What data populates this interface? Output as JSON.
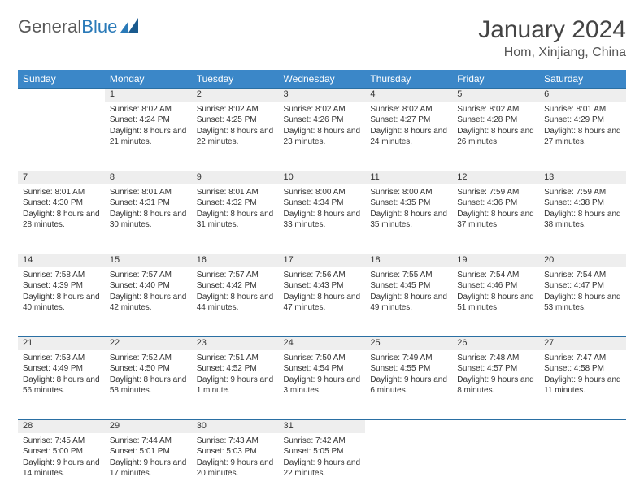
{
  "logo": {
    "text1": "General",
    "text2": "Blue"
  },
  "title": "January 2024",
  "location": "Hom, Xinjiang, China",
  "colors": {
    "header_bg": "#3b87c8",
    "header_text": "#ffffff",
    "daynum_bg": "#eeeeee",
    "border": "#2a6fa3",
    "logo_blue": "#2a7ab8"
  },
  "weekdays": [
    "Sunday",
    "Monday",
    "Tuesday",
    "Wednesday",
    "Thursday",
    "Friday",
    "Saturday"
  ],
  "weeks": [
    [
      null,
      {
        "n": "1",
        "sr": "8:02 AM",
        "ss": "4:24 PM",
        "dl": "8 hours and 21 minutes."
      },
      {
        "n": "2",
        "sr": "8:02 AM",
        "ss": "4:25 PM",
        "dl": "8 hours and 22 minutes."
      },
      {
        "n": "3",
        "sr": "8:02 AM",
        "ss": "4:26 PM",
        "dl": "8 hours and 23 minutes."
      },
      {
        "n": "4",
        "sr": "8:02 AM",
        "ss": "4:27 PM",
        "dl": "8 hours and 24 minutes."
      },
      {
        "n": "5",
        "sr": "8:02 AM",
        "ss": "4:28 PM",
        "dl": "8 hours and 26 minutes."
      },
      {
        "n": "6",
        "sr": "8:01 AM",
        "ss": "4:29 PM",
        "dl": "8 hours and 27 minutes."
      }
    ],
    [
      {
        "n": "7",
        "sr": "8:01 AM",
        "ss": "4:30 PM",
        "dl": "8 hours and 28 minutes."
      },
      {
        "n": "8",
        "sr": "8:01 AM",
        "ss": "4:31 PM",
        "dl": "8 hours and 30 minutes."
      },
      {
        "n": "9",
        "sr": "8:01 AM",
        "ss": "4:32 PM",
        "dl": "8 hours and 31 minutes."
      },
      {
        "n": "10",
        "sr": "8:00 AM",
        "ss": "4:34 PM",
        "dl": "8 hours and 33 minutes."
      },
      {
        "n": "11",
        "sr": "8:00 AM",
        "ss": "4:35 PM",
        "dl": "8 hours and 35 minutes."
      },
      {
        "n": "12",
        "sr": "7:59 AM",
        "ss": "4:36 PM",
        "dl": "8 hours and 37 minutes."
      },
      {
        "n": "13",
        "sr": "7:59 AM",
        "ss": "4:38 PM",
        "dl": "8 hours and 38 minutes."
      }
    ],
    [
      {
        "n": "14",
        "sr": "7:58 AM",
        "ss": "4:39 PM",
        "dl": "8 hours and 40 minutes."
      },
      {
        "n": "15",
        "sr": "7:57 AM",
        "ss": "4:40 PM",
        "dl": "8 hours and 42 minutes."
      },
      {
        "n": "16",
        "sr": "7:57 AM",
        "ss": "4:42 PM",
        "dl": "8 hours and 44 minutes."
      },
      {
        "n": "17",
        "sr": "7:56 AM",
        "ss": "4:43 PM",
        "dl": "8 hours and 47 minutes."
      },
      {
        "n": "18",
        "sr": "7:55 AM",
        "ss": "4:45 PM",
        "dl": "8 hours and 49 minutes."
      },
      {
        "n": "19",
        "sr": "7:54 AM",
        "ss": "4:46 PM",
        "dl": "8 hours and 51 minutes."
      },
      {
        "n": "20",
        "sr": "7:54 AM",
        "ss": "4:47 PM",
        "dl": "8 hours and 53 minutes."
      }
    ],
    [
      {
        "n": "21",
        "sr": "7:53 AM",
        "ss": "4:49 PM",
        "dl": "8 hours and 56 minutes."
      },
      {
        "n": "22",
        "sr": "7:52 AM",
        "ss": "4:50 PM",
        "dl": "8 hours and 58 minutes."
      },
      {
        "n": "23",
        "sr": "7:51 AM",
        "ss": "4:52 PM",
        "dl": "9 hours and 1 minute."
      },
      {
        "n": "24",
        "sr": "7:50 AM",
        "ss": "4:54 PM",
        "dl": "9 hours and 3 minutes."
      },
      {
        "n": "25",
        "sr": "7:49 AM",
        "ss": "4:55 PM",
        "dl": "9 hours and 6 minutes."
      },
      {
        "n": "26",
        "sr": "7:48 AM",
        "ss": "4:57 PM",
        "dl": "9 hours and 8 minutes."
      },
      {
        "n": "27",
        "sr": "7:47 AM",
        "ss": "4:58 PM",
        "dl": "9 hours and 11 minutes."
      }
    ],
    [
      {
        "n": "28",
        "sr": "7:45 AM",
        "ss": "5:00 PM",
        "dl": "9 hours and 14 minutes."
      },
      {
        "n": "29",
        "sr": "7:44 AM",
        "ss": "5:01 PM",
        "dl": "9 hours and 17 minutes."
      },
      {
        "n": "30",
        "sr": "7:43 AM",
        "ss": "5:03 PM",
        "dl": "9 hours and 20 minutes."
      },
      {
        "n": "31",
        "sr": "7:42 AM",
        "ss": "5:05 PM",
        "dl": "9 hours and 22 minutes."
      },
      null,
      null,
      null
    ]
  ],
  "labels": {
    "sunrise": "Sunrise:",
    "sunset": "Sunset:",
    "daylight": "Daylight:"
  }
}
